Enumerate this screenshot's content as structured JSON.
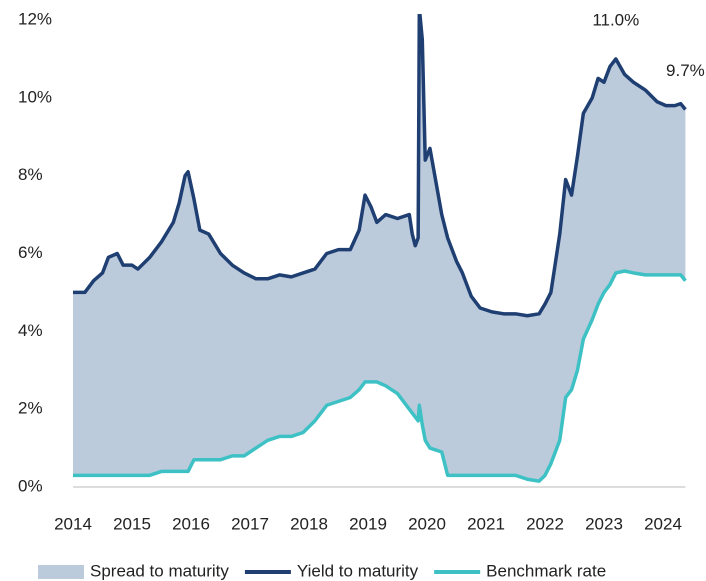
{
  "chart_data": {
    "type": "area-line",
    "x": [
      2014.0,
      2014.2,
      2014.35,
      2014.5,
      2014.6,
      2014.75,
      2014.85,
      2015.0,
      2015.1,
      2015.3,
      2015.5,
      2015.7,
      2015.8,
      2015.9,
      2015.95,
      2016.05,
      2016.15,
      2016.3,
      2016.5,
      2016.7,
      2016.9,
      2017.1,
      2017.3,
      2017.5,
      2017.7,
      2017.9,
      2018.1,
      2018.3,
      2018.5,
      2018.7,
      2018.85,
      2018.95,
      2019.05,
      2019.15,
      2019.3,
      2019.5,
      2019.7,
      2019.75,
      2019.8,
      2019.85,
      2019.87,
      2019.92,
      2019.97,
      2020.05,
      2020.25,
      2020.35,
      2020.5,
      2020.6,
      2020.75,
      2020.9,
      2021.1,
      2021.3,
      2021.5,
      2021.7,
      2021.9,
      2022.0,
      2022.1,
      2022.25,
      2022.35,
      2022.45,
      2022.55,
      2022.65,
      2022.8,
      2022.9,
      2023.0,
      2023.1,
      2023.2,
      2023.35,
      2023.5,
      2023.7,
      2023.9,
      2024.05,
      2024.2,
      2024.3,
      2024.38
    ],
    "series": [
      {
        "name": "Spread to maturity",
        "kind": "area",
        "base": 2,
        "color": "#bccbdb",
        "values": [
          4.7,
          4.7,
          5.0,
          5.2,
          5.6,
          5.7,
          5.4,
          5.4,
          5.3,
          5.6,
          5.9,
          6.4,
          6.9,
          7.6,
          7.7,
          6.7,
          5.9,
          5.8,
          5.3,
          4.9,
          4.7,
          4.35,
          4.15,
          4.15,
          4.1,
          4.1,
          3.9,
          3.9,
          3.9,
          3.8,
          4.1,
          4.8,
          4.5,
          4.1,
          4.4,
          4.5,
          5.0,
          4.6,
          4.4,
          4.7,
          10.2,
          9.9,
          7.2,
          7.7,
          6.1,
          6.1,
          5.5,
          5.2,
          4.6,
          4.3,
          4.2,
          4.15,
          4.15,
          4.2,
          4.3,
          4.4,
          4.4,
          5.3,
          5.6,
          5.0,
          5.5,
          5.8,
          5.7,
          5.8,
          5.4,
          5.6,
          5.5,
          5.05,
          4.9,
          4.75,
          4.45,
          4.35,
          4.35,
          4.4,
          4.4
        ]
      },
      {
        "name": "Yield to maturity",
        "kind": "line",
        "color": "#1f3f73",
        "values": [
          5.0,
          5.0,
          5.3,
          5.5,
          5.9,
          6.0,
          5.7,
          5.7,
          5.6,
          5.9,
          6.3,
          6.8,
          7.3,
          8.0,
          8.1,
          7.4,
          6.6,
          6.5,
          6.0,
          5.7,
          5.5,
          5.35,
          5.35,
          5.45,
          5.4,
          5.5,
          5.6,
          6.0,
          6.1,
          6.1,
          6.6,
          7.5,
          7.2,
          6.8,
          7.0,
          6.9,
          7.0,
          6.5,
          6.2,
          6.4,
          12.3,
          11.5,
          8.4,
          8.7,
          7.0,
          6.4,
          5.8,
          5.5,
          4.9,
          4.6,
          4.5,
          4.45,
          4.45,
          4.4,
          4.45,
          4.7,
          5.0,
          6.5,
          7.9,
          7.5,
          8.5,
          9.6,
          10.0,
          10.5,
          10.4,
          10.8,
          11.0,
          10.6,
          10.4,
          10.2,
          9.9,
          9.8,
          9.8,
          9.85,
          9.7
        ]
      },
      {
        "name": "Benchmark rate",
        "kind": "line",
        "color": "#3ec1c4",
        "values": [
          0.3,
          0.3,
          0.3,
          0.3,
          0.3,
          0.3,
          0.3,
          0.3,
          0.3,
          0.3,
          0.4,
          0.4,
          0.4,
          0.4,
          0.4,
          0.7,
          0.7,
          0.7,
          0.7,
          0.8,
          0.8,
          1.0,
          1.2,
          1.3,
          1.3,
          1.4,
          1.7,
          2.1,
          2.2,
          2.3,
          2.5,
          2.7,
          2.7,
          2.7,
          2.6,
          2.4,
          2.0,
          1.9,
          1.8,
          1.7,
          2.1,
          1.6,
          1.2,
          1.0,
          0.9,
          0.3,
          0.3,
          0.3,
          0.3,
          0.3,
          0.3,
          0.3,
          0.3,
          0.2,
          0.15,
          0.3,
          0.6,
          1.2,
          2.3,
          2.5,
          3.0,
          3.8,
          4.3,
          4.7,
          5.0,
          5.2,
          5.5,
          5.55,
          5.5,
          5.45,
          5.45,
          5.45,
          5.45,
          5.45,
          5.3
        ]
      }
    ],
    "annotations": [
      {
        "text": "11.0%",
        "x": 2023.2,
        "y": 11.0
      },
      {
        "text": "9.7%",
        "x": 2024.38,
        "y": 9.7
      }
    ],
    "xlim": [
      2014,
      2024.38
    ],
    "xticks": [
      2014,
      2015,
      2016,
      2017,
      2018,
      2019,
      2020,
      2021,
      2022,
      2023,
      2024
    ],
    "ylim": [
      0,
      12
    ],
    "yticks": [
      {
        "value": 0,
        "label": "0%"
      },
      {
        "value": 2,
        "label": "2%"
      },
      {
        "value": 4,
        "label": "4%"
      },
      {
        "value": 6,
        "label": "6%"
      },
      {
        "value": 8,
        "label": "8%"
      },
      {
        "value": 10,
        "label": "10%"
      },
      {
        "value": 12,
        "label": "12%"
      }
    ],
    "legend": "bottom"
  }
}
